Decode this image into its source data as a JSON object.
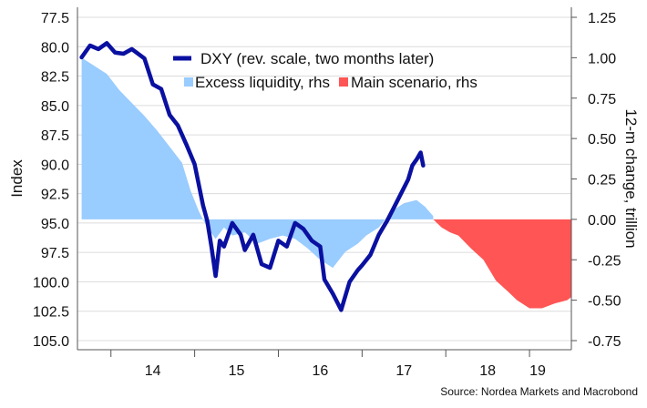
{
  "chart_data": {
    "type": "area+line",
    "title": "",
    "ylabel_left": "Index",
    "ylabel_right": "12-m change, trillion",
    "source": "Source: Nordea Markets and Macrobond",
    "left_axis": {
      "inverted": true,
      "range": [
        77.5,
        105.0
      ],
      "ticks": [
        77.5,
        80.0,
        82.5,
        85.0,
        87.5,
        90.0,
        92.5,
        95.0,
        97.5,
        100.0,
        102.5,
        105.0
      ],
      "tick_labels": [
        "77.5",
        "80.0",
        "82.5",
        "85.0",
        "87.5",
        "90.0",
        "92.5",
        "95.0",
        "97.5",
        "100.0",
        "102.5",
        "105.0"
      ]
    },
    "right_axis": {
      "range": [
        -0.75,
        1.25
      ],
      "ticks": [
        1.25,
        1.0,
        0.75,
        0.5,
        0.25,
        0.0,
        -0.25,
        -0.5,
        -0.75
      ],
      "tick_labels": [
        "1.25",
        "1.00",
        "0.75",
        "0.50",
        "0.25",
        "0.00",
        "-0.25",
        "-0.50",
        "-0.75"
      ]
    },
    "x_axis": {
      "range": [
        2013.6,
        2019.5
      ],
      "year_ticks": [
        2014,
        2015,
        2016,
        2017,
        2018,
        2019,
        2020
      ],
      "labels": [
        {
          "x": 2014.5,
          "text": "14"
        },
        {
          "x": 2015.5,
          "text": "15"
        },
        {
          "x": 2016.5,
          "text": "16"
        },
        {
          "x": 2017.5,
          "text": "17"
        },
        {
          "x": 2018.5,
          "text": "18"
        },
        {
          "x": 2019.5,
          "text": "19"
        }
      ]
    },
    "legend": [
      {
        "name": "DXY (rev. scale, two months later)",
        "kind": "line",
        "color": "#0a10a0"
      },
      {
        "name": "Excess liquidity, rhs",
        "kind": "area",
        "color": "#99ccff"
      },
      {
        "name": "Main scenario, rhs",
        "kind": "area",
        "color": "#ff5555"
      }
    ],
    "series": [
      {
        "name": "Excess liquidity, rhs",
        "axis": "right",
        "type": "area",
        "color": "#99ccff",
        "points": [
          [
            2013.65,
            1.0
          ],
          [
            2013.8,
            0.95
          ],
          [
            2013.95,
            0.9
          ],
          [
            2014.1,
            0.8
          ],
          [
            2014.25,
            0.72
          ],
          [
            2014.4,
            0.64
          ],
          [
            2014.55,
            0.55
          ],
          [
            2014.7,
            0.45
          ],
          [
            2014.85,
            0.35
          ],
          [
            2014.95,
            0.18
          ],
          [
            2015.05,
            0.05
          ],
          [
            2015.15,
            -0.05
          ],
          [
            2015.25,
            -0.12
          ],
          [
            2015.35,
            -0.05
          ],
          [
            2015.45,
            -0.1
          ],
          [
            2015.6,
            -0.08
          ],
          [
            2015.75,
            -0.15
          ],
          [
            2015.9,
            -0.12
          ],
          [
            2016.05,
            -0.1
          ],
          [
            2016.2,
            -0.12
          ],
          [
            2016.35,
            -0.18
          ],
          [
            2016.5,
            -0.25
          ],
          [
            2016.65,
            -0.3
          ],
          [
            2016.8,
            -0.2
          ],
          [
            2016.95,
            -0.15
          ],
          [
            2017.05,
            -0.1
          ],
          [
            2017.2,
            -0.05
          ],
          [
            2017.35,
            0.05
          ],
          [
            2017.5,
            0.1
          ],
          [
            2017.65,
            0.12
          ],
          [
            2017.75,
            0.08
          ],
          [
            2017.85,
            0.02
          ]
        ]
      },
      {
        "name": "Main scenario, rhs",
        "axis": "right",
        "type": "area",
        "color": "#ff5555",
        "points": [
          [
            2017.85,
            0.0
          ],
          [
            2017.95,
            -0.05
          ],
          [
            2018.05,
            -0.08
          ],
          [
            2018.15,
            -0.1
          ],
          [
            2018.3,
            -0.18
          ],
          [
            2018.45,
            -0.25
          ],
          [
            2018.6,
            -0.38
          ],
          [
            2018.75,
            -0.45
          ],
          [
            2018.85,
            -0.5
          ],
          [
            2019.0,
            -0.55
          ],
          [
            2019.15,
            -0.55
          ],
          [
            2019.3,
            -0.52
          ],
          [
            2019.45,
            -0.5
          ],
          [
            2019.5,
            -0.48
          ]
        ]
      },
      {
        "name": "DXY (rev. scale, two months later)",
        "axis": "left",
        "type": "line",
        "color": "#0a10a0",
        "points": [
          [
            2013.65,
            80.9
          ],
          [
            2013.75,
            79.9
          ],
          [
            2013.85,
            80.2
          ],
          [
            2013.95,
            79.7
          ],
          [
            2014.05,
            80.5
          ],
          [
            2014.15,
            80.6
          ],
          [
            2014.25,
            80.2
          ],
          [
            2014.4,
            81.0
          ],
          [
            2014.5,
            83.2
          ],
          [
            2014.6,
            83.6
          ],
          [
            2014.7,
            85.8
          ],
          [
            2014.8,
            86.7
          ],
          [
            2014.9,
            88.3
          ],
          [
            2015.0,
            90.0
          ],
          [
            2015.1,
            93.5
          ],
          [
            2015.15,
            94.8
          ],
          [
            2015.2,
            97.0
          ],
          [
            2015.25,
            99.5
          ],
          [
            2015.3,
            96.5
          ],
          [
            2015.35,
            97.0
          ],
          [
            2015.45,
            95.0
          ],
          [
            2015.55,
            96.0
          ],
          [
            2015.6,
            97.3
          ],
          [
            2015.7,
            96.0
          ],
          [
            2015.8,
            98.5
          ],
          [
            2015.9,
            98.8
          ],
          [
            2016.0,
            96.5
          ],
          [
            2016.1,
            97.0
          ],
          [
            2016.2,
            95.0
          ],
          [
            2016.3,
            95.5
          ],
          [
            2016.4,
            96.5
          ],
          [
            2016.5,
            97.0
          ],
          [
            2016.55,
            99.8
          ],
          [
            2016.65,
            101.0
          ],
          [
            2016.75,
            102.4
          ],
          [
            2016.85,
            100.0
          ],
          [
            2016.95,
            99.0
          ],
          [
            2017.0,
            98.6
          ],
          [
            2017.1,
            97.7
          ],
          [
            2017.2,
            96.0
          ],
          [
            2017.3,
            94.8
          ],
          [
            2017.4,
            93.4
          ],
          [
            2017.5,
            92.0
          ],
          [
            2017.55,
            91.3
          ],
          [
            2017.6,
            90.1
          ],
          [
            2017.65,
            89.6
          ],
          [
            2017.7,
            89.0
          ],
          [
            2017.73,
            90.1
          ]
        ]
      }
    ]
  }
}
